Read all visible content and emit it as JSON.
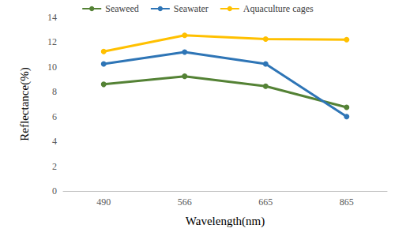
{
  "chart_data": {
    "type": "line",
    "x_label": "Wavelength(nm)",
    "y_label": "Reflectance(%)",
    "categories": [
      "490",
      "566",
      "665",
      "865"
    ],
    "series": [
      {
        "name": "Seaweed",
        "color": "#548235",
        "values": [
          8.6,
          9.25,
          8.45,
          6.75
        ]
      },
      {
        "name": "Seawater",
        "color": "#2e75b6",
        "values": [
          10.25,
          11.2,
          10.25,
          6.0
        ]
      },
      {
        "name": "Aquaculture cages",
        "color": "#ffc000",
        "values": [
          11.25,
          12.55,
          12.25,
          12.2
        ]
      }
    ],
    "ylim": [
      0,
      14
    ],
    "yticks": [
      0,
      2,
      4,
      6,
      8,
      10,
      12,
      14
    ],
    "grid": false,
    "legend": "top",
    "marker": "circle"
  }
}
